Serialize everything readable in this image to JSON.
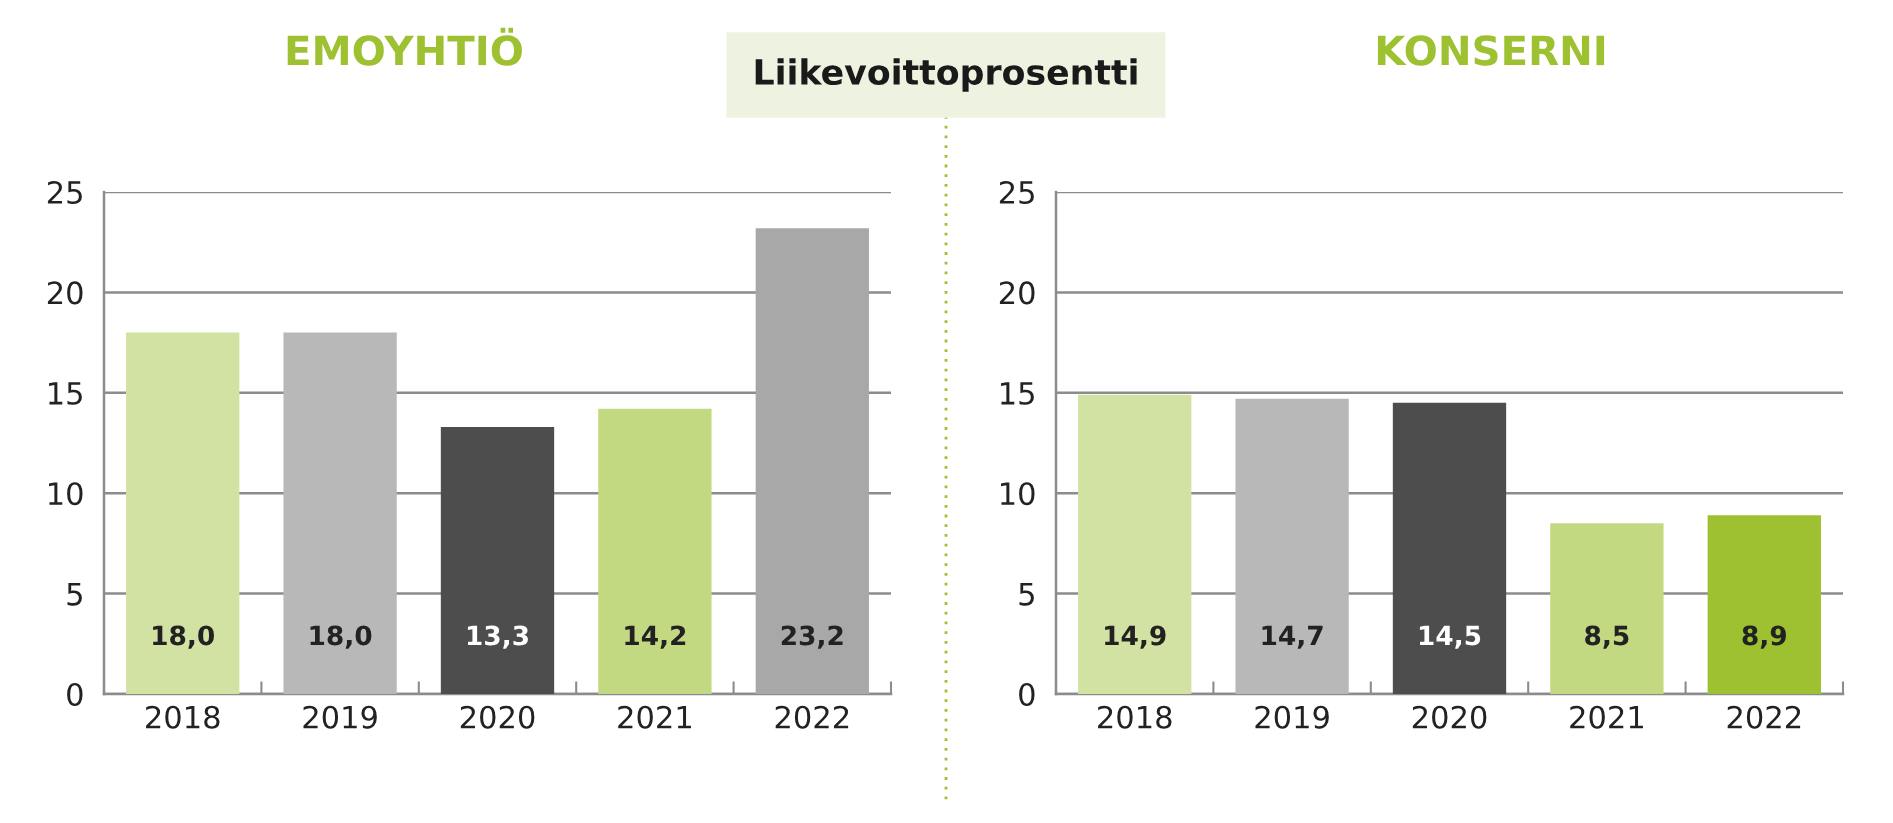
{
  "chart_data": [
    {
      "type": "bar",
      "title": "EMOYHTIÖ",
      "annotations": [
        "Liikevoittoprosentti"
      ],
      "categories": [
        "2018",
        "2019",
        "2020",
        "2021",
        "2022"
      ],
      "values": [
        18.0,
        18.0,
        13.3,
        14.2,
        23.2
      ],
      "colors": [
        "#d2e2a3",
        "#b8b8b8",
        "#4d4d4d",
        "#c2d982",
        "#a8a8a8"
      ],
      "value_labels": [
        "18,0",
        "18,0",
        "13,3",
        "14,2",
        "23,2"
      ],
      "ylim": [
        0,
        25
      ],
      "yticks": [
        0,
        5,
        10,
        15,
        20,
        25
      ],
      "grid": "y"
    },
    {
      "type": "bar",
      "title": "KONSERNI",
      "categories": [
        "2018",
        "2019",
        "2020",
        "2021",
        "2022"
      ],
      "values": [
        14.9,
        14.7,
        14.5,
        8.5,
        8.9
      ],
      "colors": [
        "#d2e2a3",
        "#b8b8b8",
        "#4d4d4d",
        "#c2d982",
        "#9dc130"
      ],
      "value_labels": [
        "14,9",
        "14,7",
        "14,5",
        "8,5",
        "8,9"
      ],
      "ylim": [
        0,
        25
      ],
      "yticks": [
        0,
        5,
        10,
        15,
        20,
        25
      ],
      "grid": "y"
    }
  ]
}
